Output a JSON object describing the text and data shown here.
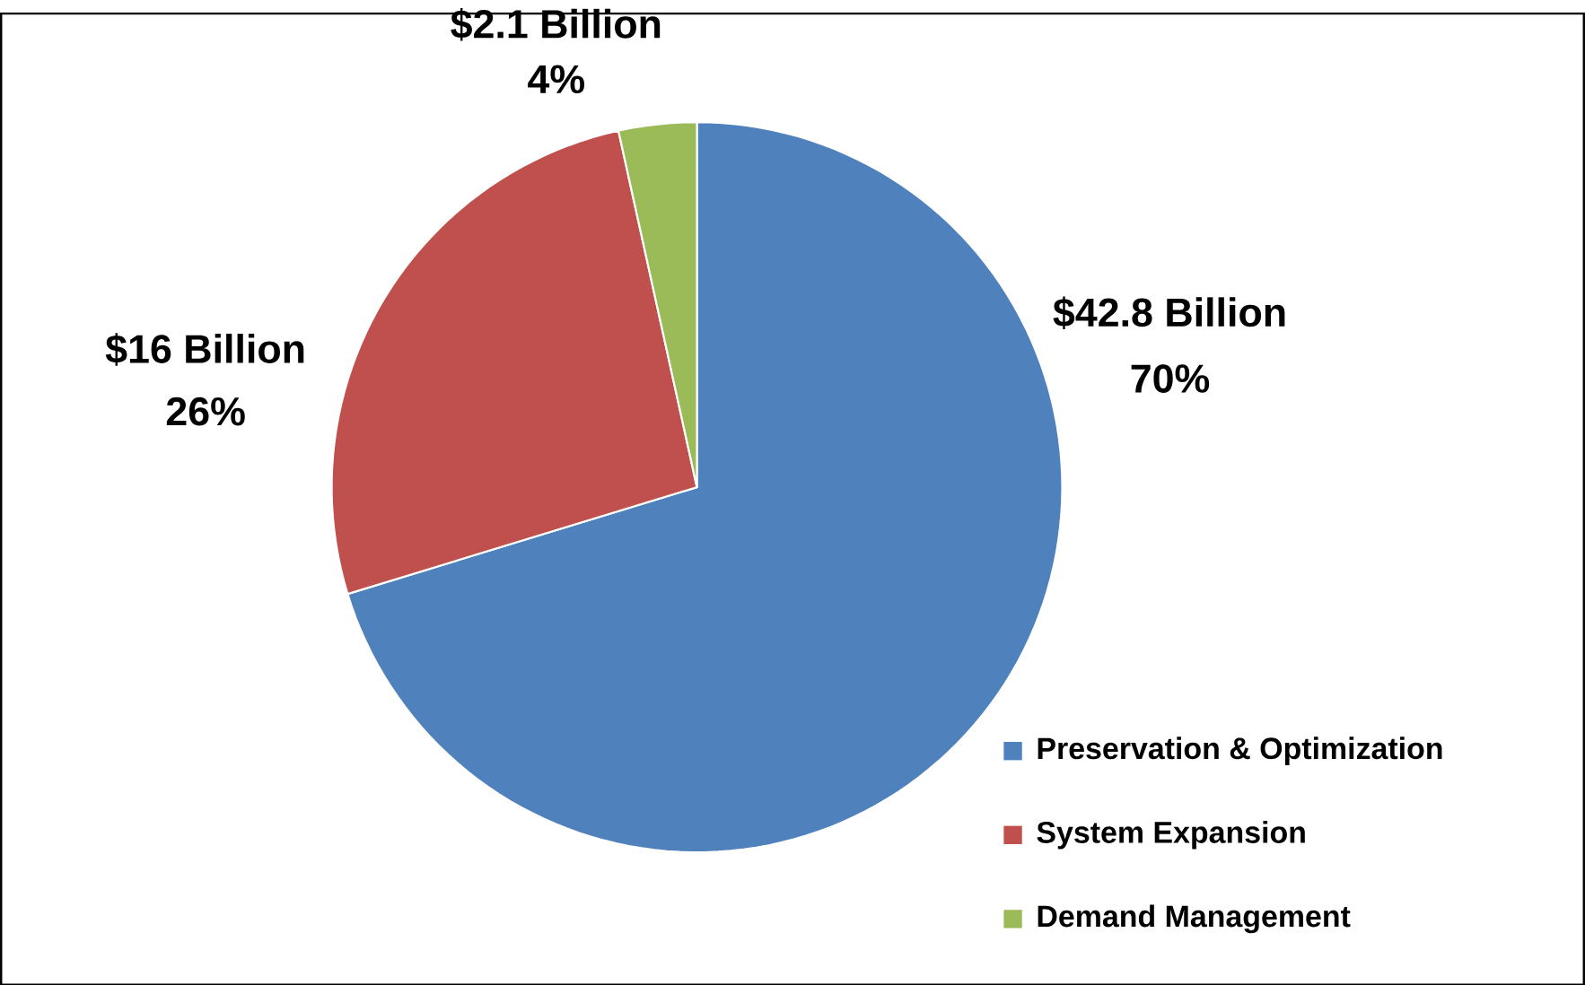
{
  "chart_data": {
    "type": "pie",
    "categories": [
      "Preservation & Optimization",
      "System Expansion",
      "Demand Management"
    ],
    "values": [
      42.8,
      16,
      2.1
    ],
    "colors": [
      "#4f81bd",
      "#c0504d",
      "#9bbb59"
    ],
    "value_labels": [
      "$42.8 Billion",
      "$16 Billion",
      "$2.1 Billion"
    ],
    "annotations": [
      {
        "text": "70%",
        "x": "Preservation & Optimization"
      },
      {
        "text": "26%",
        "x": "System Expansion"
      },
      {
        "text": "4%",
        "x": "Demand Management"
      }
    ],
    "legend": "bottom right"
  }
}
